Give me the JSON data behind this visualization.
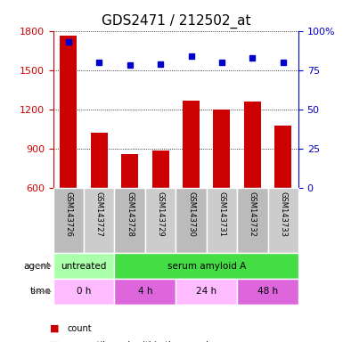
{
  "title": "GDS2471 / 212502_at",
  "samples": [
    "GSM143726",
    "GSM143727",
    "GSM143728",
    "GSM143729",
    "GSM143730",
    "GSM143731",
    "GSM143732",
    "GSM143733"
  ],
  "counts": [
    1760,
    1020,
    860,
    890,
    1270,
    1200,
    1260,
    1080
  ],
  "percentile_ranks": [
    93,
    80,
    78,
    79,
    84,
    80,
    83,
    80
  ],
  "ylim_left": [
    600,
    1800
  ],
  "ylim_right": [
    0,
    100
  ],
  "yticks_left": [
    600,
    900,
    1200,
    1500,
    1800
  ],
  "yticks_right": [
    0,
    25,
    50,
    75,
    100
  ],
  "bar_color": "#cc0000",
  "dot_color": "#0000cc",
  "bar_width": 0.55,
  "agent_row": [
    {
      "label": "untreated",
      "start": 0,
      "end": 2,
      "color": "#aaffaa"
    },
    {
      "label": "serum amyloid A",
      "start": 2,
      "end": 8,
      "color": "#44dd44"
    }
  ],
  "time_row": [
    {
      "label": "0 h",
      "start": 0,
      "end": 2,
      "color": "#ffbbff"
    },
    {
      "label": "4 h",
      "start": 2,
      "end": 4,
      "color": "#dd66dd"
    },
    {
      "label": "24 h",
      "start": 4,
      "end": 6,
      "color": "#ffbbff"
    },
    {
      "label": "48 h",
      "start": 6,
      "end": 8,
      "color": "#dd66dd"
    }
  ],
  "sample_bg_colors": [
    "#bbbbbb",
    "#cccccc",
    "#bbbbbb",
    "#cccccc",
    "#bbbbbb",
    "#cccccc",
    "#bbbbbb",
    "#cccccc"
  ],
  "legend_count_color": "#cc0000",
  "legend_dot_color": "#0000cc",
  "title_fontsize": 11,
  "axis_label_color_left": "#cc0000",
  "axis_label_color_right": "#0000cc"
}
